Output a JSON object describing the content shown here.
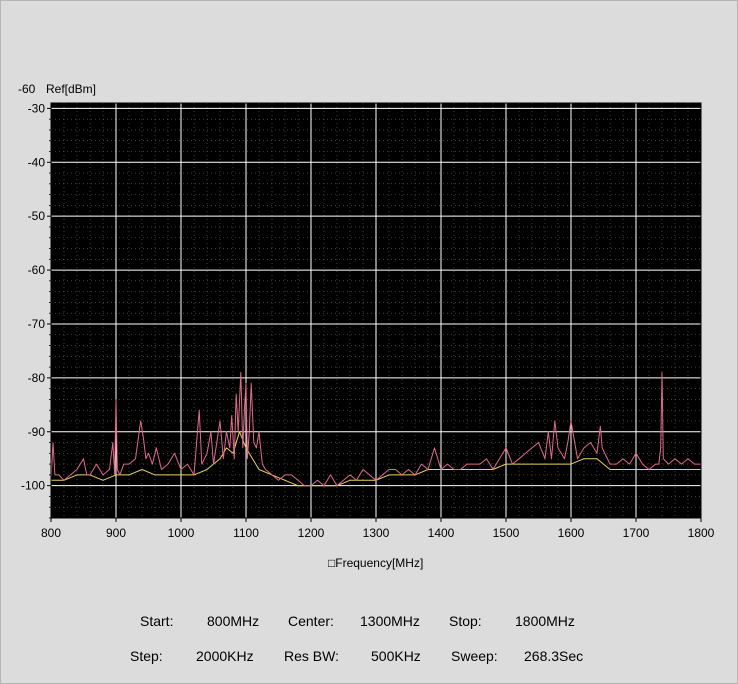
{
  "header": {
    "ref_value": "-60",
    "ref_label": "Ref[dBm]"
  },
  "legend": {
    "marker": "□",
    "label": "Frequency[MHz]"
  },
  "stats": {
    "start_label": "Start:",
    "start_value": "800MHz",
    "center_label": "Center:",
    "center_value": "1300MHz",
    "stop_label": "Stop:",
    "stop_value": "1800MHz",
    "step_label": "Step:",
    "step_value": "2000KHz",
    "resbw_label": "Res BW:",
    "resbw_value": "500KHz",
    "sweep_label": "Sweep:",
    "sweep_value": "268.3Sec"
  },
  "colors": {
    "plot_bg": "#000000",
    "grid": "#ffffff",
    "trace_max": "#e06a8a",
    "trace_avg": "#e8d25a"
  },
  "chart_data": {
    "type": "line",
    "title": "",
    "xlabel": "Frequency[MHz]",
    "ylabel": "Ref[dBm]",
    "xlim": [
      800,
      1800
    ],
    "ylim": [
      -106,
      -29
    ],
    "x_ticks": [
      "800",
      "900",
      "1000",
      "1100",
      "1200",
      "1300",
      "1400",
      "1500",
      "1600",
      "1700",
      "1800"
    ],
    "y_ticks": [
      "-30",
      "-40",
      "-50",
      "-60",
      "-70",
      "-80",
      "-90",
      "-100"
    ],
    "grid": true,
    "series": [
      {
        "color": "#e06a8a",
        "x": [
          800,
          803,
          806,
          812,
          820,
          830,
          840,
          850,
          855,
          860,
          870,
          880,
          890,
          895,
          898,
          900,
          902,
          906,
          912,
          920,
          930,
          938,
          942,
          946,
          950,
          956,
          962,
          970,
          980,
          990,
          1000,
          1010,
          1020,
          1028,
          1032,
          1040,
          1046,
          1050,
          1055,
          1060,
          1065,
          1070,
          1075,
          1078,
          1082,
          1085,
          1088,
          1092,
          1095,
          1098,
          1100,
          1102,
          1105,
          1108,
          1112,
          1116,
          1120,
          1125,
          1130,
          1140,
          1150,
          1160,
          1170,
          1180,
          1190,
          1200,
          1210,
          1220,
          1230,
          1240,
          1250,
          1260,
          1270,
          1280,
          1290,
          1300,
          1310,
          1320,
          1330,
          1340,
          1350,
          1360,
          1370,
          1380,
          1390,
          1400,
          1410,
          1420,
          1430,
          1440,
          1450,
          1460,
          1470,
          1480,
          1490,
          1500,
          1510,
          1520,
          1530,
          1540,
          1550,
          1560,
          1565,
          1570,
          1575,
          1580,
          1590,
          1595,
          1600,
          1610,
          1620,
          1630,
          1640,
          1645,
          1648,
          1660,
          1670,
          1680,
          1690,
          1700,
          1710,
          1720,
          1730,
          1735,
          1738,
          1740,
          1742,
          1750,
          1760,
          1770,
          1780,
          1790,
          1800
        ],
        "y": [
          -99,
          -92,
          -98,
          -98,
          -99,
          -98,
          -97,
          -95,
          -98,
          -98,
          -96,
          -98,
          -97,
          -92,
          -98,
          -84,
          -97,
          -98,
          -96,
          -96,
          -95,
          -88,
          -91,
          -95,
          -94,
          -96,
          -93,
          -97,
          -96,
          -94,
          -97,
          -96,
          -98,
          -86,
          -96,
          -94,
          -90,
          -96,
          -92,
          -88,
          -95,
          -90,
          -93,
          -87,
          -95,
          -83,
          -90,
          -79,
          -93,
          -85,
          -81,
          -95,
          -90,
          -81,
          -92,
          -93,
          -90,
          -96,
          -97,
          -98,
          -99,
          -98,
          -98,
          -99,
          -100,
          -100,
          -99,
          -100,
          -98,
          -100,
          -99,
          -98,
          -99,
          -97,
          -98,
          -99,
          -98,
          -97,
          -97,
          -98,
          -97,
          -98,
          -96,
          -97,
          -93,
          -97,
          -96,
          -97,
          -97,
          -96,
          -96,
          -96,
          -95,
          -97,
          -95,
          -93,
          -96,
          -95,
          -94,
          -93,
          -92,
          -95,
          -90,
          -95,
          -88,
          -93,
          -95,
          -92,
          -88,
          -95,
          -93,
          -92,
          -94,
          -89,
          -93,
          -96,
          -96,
          -95,
          -96,
          -94,
          -96,
          -97,
          -96,
          -96,
          -93,
          -79,
          -95,
          -96,
          -95,
          -96,
          -95,
          -96,
          -96
        ]
      },
      {
        "color": "#e8d25a",
        "x": [
          800,
          820,
          840,
          860,
          880,
          900,
          920,
          940,
          960,
          980,
          1000,
          1020,
          1040,
          1060,
          1070,
          1080,
          1090,
          1100,
          1110,
          1120,
          1140,
          1160,
          1180,
          1200,
          1220,
          1240,
          1260,
          1280,
          1300,
          1320,
          1340,
          1360,
          1380,
          1400,
          1420,
          1440,
          1460,
          1480,
          1500,
          1520,
          1540,
          1560,
          1580,
          1600,
          1620,
          1640,
          1660,
          1680,
          1700,
          1720,
          1740,
          1760,
          1780,
          1800
        ],
        "y": [
          -99,
          -99,
          -98,
          -98,
          -99,
          -98,
          -98,
          -97,
          -98,
          -98,
          -98,
          -98,
          -97,
          -95,
          -93,
          -94,
          -90,
          -93,
          -95,
          -97,
          -98,
          -99,
          -100,
          -100,
          -100,
          -100,
          -99,
          -99,
          -99,
          -98,
          -98,
          -98,
          -97,
          -97,
          -97,
          -97,
          -97,
          -97,
          -96,
          -96,
          -96,
          -96,
          -96,
          -96,
          -95,
          -95,
          -97,
          -97,
          -97,
          -97,
          -97,
          -97,
          -97,
          -97
        ]
      }
    ]
  }
}
